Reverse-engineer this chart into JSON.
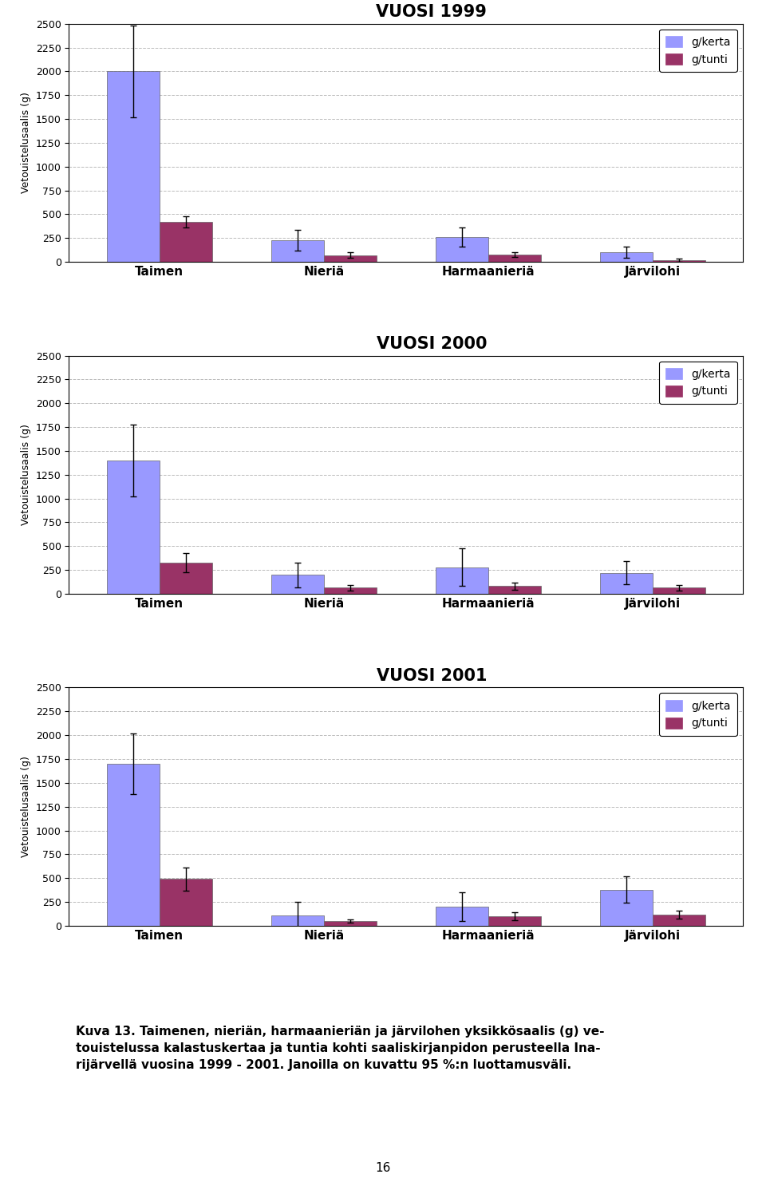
{
  "charts": [
    {
      "title": "VUOSI 1999",
      "ylabel": "Vetouistelusaalis (g)",
      "ylim": [
        0,
        2500
      ],
      "yticks": [
        0,
        250,
        500,
        750,
        1000,
        1250,
        1500,
        1750,
        2000,
        2250,
        2500
      ],
      "categories": [
        "Taimen",
        "Nieriä",
        "Harmaanieriä",
        "Järvilohi"
      ],
      "gkerta_values": [
        2000,
        230,
        260,
        100
      ],
      "gtunti_values": [
        420,
        70,
        75,
        20
      ],
      "gkerta_errors": [
        480,
        110,
        100,
        60
      ],
      "gtunti_errors": [
        60,
        30,
        25,
        15
      ]
    },
    {
      "title": "VUOSI 2000",
      "ylabel": "Vetouistelusaalis (g)",
      "ylim": [
        0,
        2500
      ],
      "yticks": [
        0,
        250,
        500,
        750,
        1000,
        1250,
        1500,
        1750,
        2000,
        2250,
        2500
      ],
      "categories": [
        "Taimen",
        "Nieriä",
        "Harmaanieriä",
        "Järvilohi"
      ],
      "gkerta_values": [
        1400,
        200,
        280,
        220
      ],
      "gtunti_values": [
        330,
        65,
        80,
        65
      ],
      "gkerta_errors": [
        380,
        130,
        200,
        120
      ],
      "gtunti_errors": [
        100,
        30,
        35,
        30
      ]
    },
    {
      "title": "VUOSI 2001",
      "ylabel": "Vetouistelusaalis (g)",
      "ylim": [
        0,
        2500
      ],
      "yticks": [
        0,
        250,
        500,
        750,
        1000,
        1250,
        1500,
        1750,
        2000,
        2250,
        2500
      ],
      "categories": [
        "Taimen",
        "Nieriä",
        "Harmaanieriä",
        "Järvilohi"
      ],
      "gkerta_values": [
        1700,
        110,
        200,
        380
      ],
      "gtunti_values": [
        490,
        50,
        100,
        115
      ],
      "gkerta_errors": [
        320,
        140,
        150,
        140
      ],
      "gtunti_errors": [
        120,
        20,
        40,
        40
      ]
    }
  ],
  "bar_color_kerta": "#9999FF",
  "bar_color_tunti": "#993366",
  "legend_labels": [
    "g/kerta",
    "g/tunti"
  ],
  "caption_line1": "Kuva 13. Taimenen, nieriän, harmaanieriän ja järvilohen yksikkösaalis (g) ve-",
  "caption_line2": "touistelussa kalastuskertaa ja tuntia kohti saaliskirjanpidon perusteella Ina-",
  "caption_line3": "rijärvellä vuosina 1999 - 2001. Janoilla on kuvattu 95 %:n luottamusväli.",
  "page_number": "16",
  "background_color": "#FFFFFF",
  "grid_color": "#BBBBBB",
  "bar_width": 0.32
}
